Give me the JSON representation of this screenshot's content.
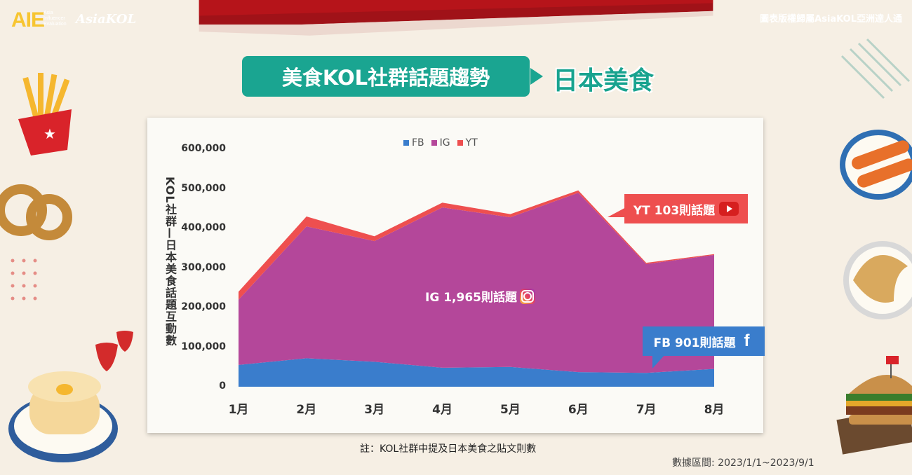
{
  "header": {
    "logo_main": "AIE",
    "logo_sub": [
      "Asia",
      "Influencer",
      "Evaluation"
    ],
    "logo_brand": "AsiaKOL",
    "copyright": "圖表版權歸屬AsiaKOL亞洲達人通"
  },
  "title": {
    "main": "美食KOL社群話題趨勢",
    "sub": "日本美食"
  },
  "colors": {
    "fb": "#3a7dcc",
    "ig": "#b4479a",
    "yt": "#ee4f4f",
    "teal": "#1aa591"
  },
  "callouts": {
    "yt": "YT 103則話題",
    "ig": "IG 1,965則話題",
    "fb": "FB 901則話題"
  },
  "note": "註：KOL社群中提及日本美食之貼文則數",
  "date_range": "數據區間: 2023/1/1~2023/9/1",
  "chart_data": {
    "type": "area",
    "stacked": true,
    "ylabel": "KOL社群—日本美食話題互動數",
    "xlabel": "",
    "categories": [
      "1月",
      "2月",
      "3月",
      "4月",
      "5月",
      "6月",
      "7月",
      "8月"
    ],
    "ylim": [
      0,
      600000
    ],
    "yticks": [
      "0",
      "100,000",
      "200,000",
      "300,000",
      "400,000",
      "500,000",
      "600,000"
    ],
    "legend_position": "top-center",
    "series": [
      {
        "name": "FB",
        "values": [
          55000,
          72000,
          63000,
          48000,
          50000,
          37000,
          35000,
          45000
        ]
      },
      {
        "name": "IG",
        "values": [
          165000,
          333000,
          305000,
          405000,
          378000,
          453000,
          275000,
          288000
        ]
      },
      {
        "name": "YT",
        "values": [
          20000,
          25000,
          12000,
          12000,
          8000,
          6000,
          3000,
          2000
        ]
      }
    ]
  }
}
